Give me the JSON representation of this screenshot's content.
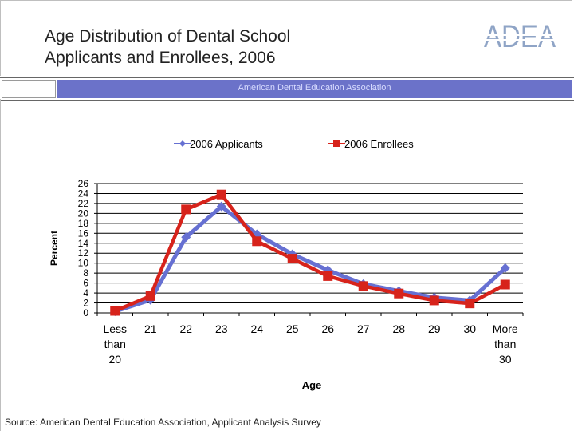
{
  "header": {
    "title": "Age Distribution of Dental School\nApplicants and Enrollees, 2006",
    "logo_text": "ADEA",
    "band_text": "American Dental Education Association"
  },
  "colors": {
    "applicants": "#6670d2",
    "enrollees": "#d7231b",
    "band": "#6b72c9"
  },
  "chart_data": {
    "type": "line",
    "title": "",
    "xlabel": "Age",
    "ylabel": "Percent",
    "ylim": [
      0,
      26
    ],
    "yticks": [
      0,
      2,
      4,
      6,
      8,
      10,
      12,
      14,
      16,
      18,
      20,
      22,
      24,
      26
    ],
    "grid": true,
    "legend_position": "top",
    "categories": [
      "Less than 20",
      "21",
      "22",
      "23",
      "24",
      "25",
      "26",
      "27",
      "28",
      "29",
      "30",
      "More than 30"
    ],
    "series": [
      {
        "name": "2006 Applicants",
        "marker": "diamond",
        "values": [
          0.3,
          2.6,
          15.2,
          21.4,
          15.8,
          11.8,
          8.6,
          5.8,
          4.4,
          3.1,
          2.5,
          9.0
        ]
      },
      {
        "name": "2006 Enrollees",
        "marker": "square",
        "values": [
          0.4,
          3.4,
          20.8,
          23.8,
          14.4,
          10.9,
          7.4,
          5.4,
          3.9,
          2.5,
          1.9,
          5.7
        ]
      }
    ]
  },
  "footer": {
    "source": "Source: American Dental Education Association, Applicant Analysis Survey"
  }
}
